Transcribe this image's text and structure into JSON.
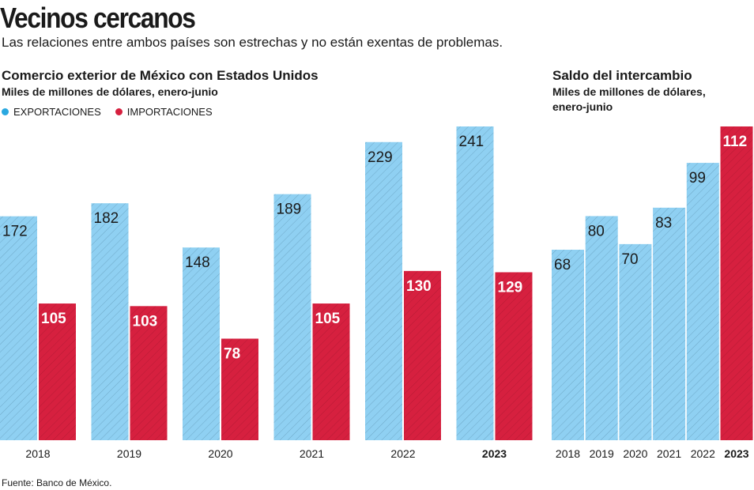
{
  "title": "Vecinos cercanos",
  "subtitle": "Las relaciones entre ambos países son estrechas y no están exentas de problemas.",
  "source": "Fuente: Banco de México.",
  "colors": {
    "exports": "#8fd0f2",
    "imports": "#d6203f",
    "balance_highlight": "#d6203f"
  },
  "chart_data": [
    {
      "type": "bar",
      "title": "Comercio exterior de México con Estados Unidos",
      "subtitle": "Miles de millones de dólares, enero-junio",
      "legend": [
        "EXPORTACIONES",
        "IMPORTACIONES"
      ],
      "categories": [
        "2018",
        "2019",
        "2020",
        "2021",
        "2022",
        "2023"
      ],
      "series": [
        {
          "name": "EXPORTACIONES",
          "values": [
            172,
            182,
            148,
            189,
            229,
            241
          ]
        },
        {
          "name": "IMPORTACIONES",
          "values": [
            105,
            103,
            78,
            105,
            130,
            129
          ]
        }
      ]
    },
    {
      "type": "bar",
      "title": "Saldo del intercambio",
      "subtitle_lines": [
        "Miles de millones de dólares,",
        "enero-junio"
      ],
      "categories": [
        "2018",
        "2019",
        "2020",
        "2021",
        "2022",
        "2023"
      ],
      "values": [
        68,
        80,
        70,
        83,
        99,
        112
      ]
    }
  ]
}
